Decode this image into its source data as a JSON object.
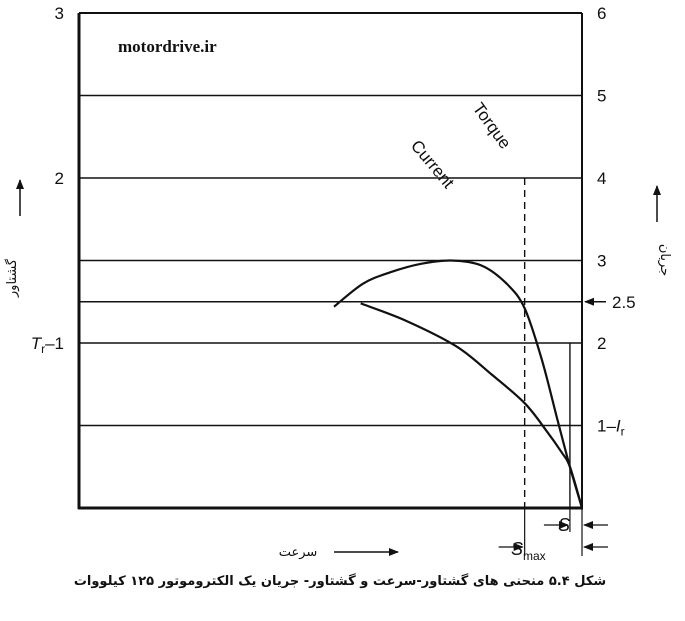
{
  "watermark": "motordrive.ir",
  "caption": "شکل ۵.۴ منحنی های گشتاور-سرعت و گشتاور- جریان یک الکتروموتور ۱۲۵ کیلووات",
  "chart_data": {
    "type": "line",
    "xlabel": "سرعت",
    "ylabel_left": "گشتاور",
    "ylabel_right": "جریان",
    "ylim_left": [
      0,
      3
    ],
    "ylim_right": [
      0,
      6
    ],
    "xlim": [
      0,
      1
    ],
    "left_ticks": [
      {
        "v": 3,
        "label": "3"
      },
      {
        "v": 2,
        "label": "2"
      },
      {
        "v": 1,
        "label": "–1",
        "prefix": "T",
        "sub": "r"
      }
    ],
    "right_ticks": [
      {
        "v": 6,
        "label": "6"
      },
      {
        "v": 5,
        "label": "5"
      },
      {
        "v": 4,
        "label": "4"
      },
      {
        "v": 3,
        "label": "3"
      },
      {
        "v": 2.5,
        "label": "2.5"
      },
      {
        "v": 2,
        "label": "2"
      },
      {
        "v": 1,
        "label": "1–",
        "suffix": "I",
        "sub": "r"
      }
    ],
    "gridlines_right": [
      5,
      4,
      3,
      2.5,
      2,
      1
    ],
    "series": [
      {
        "name": "Torque",
        "axis": "left",
        "points": [
          [
            0.507,
            1.22
          ],
          [
            0.565,
            1.36
          ],
          [
            0.62,
            1.43
          ],
          [
            0.68,
            1.48
          ],
          [
            0.74,
            1.5
          ],
          [
            0.8,
            1.47
          ],
          [
            0.85,
            1.36
          ],
          [
            0.886,
            1.21
          ],
          [
            0.92,
            0.9
          ],
          [
            0.95,
            0.55
          ],
          [
            0.976,
            0.25
          ],
          [
            1.0,
            0.0
          ]
        ]
      },
      {
        "name": "Current",
        "axis": "right",
        "points": [
          [
            0.56,
            2.48
          ],
          [
            0.65,
            2.27
          ],
          [
            0.75,
            1.96
          ],
          [
            0.82,
            1.62
          ],
          [
            0.886,
            1.27
          ],
          [
            0.93,
            0.93
          ],
          [
            0.96,
            0.67
          ],
          [
            0.976,
            0.5
          ],
          [
            1.0,
            0.0
          ]
        ]
      }
    ],
    "annotations": {
      "smax_x": 0.886,
      "smax_label": "S",
      "smax_sub": "max",
      "s_x": 0.976,
      "s_label": "S",
      "rated_point_x": 0.976
    }
  }
}
